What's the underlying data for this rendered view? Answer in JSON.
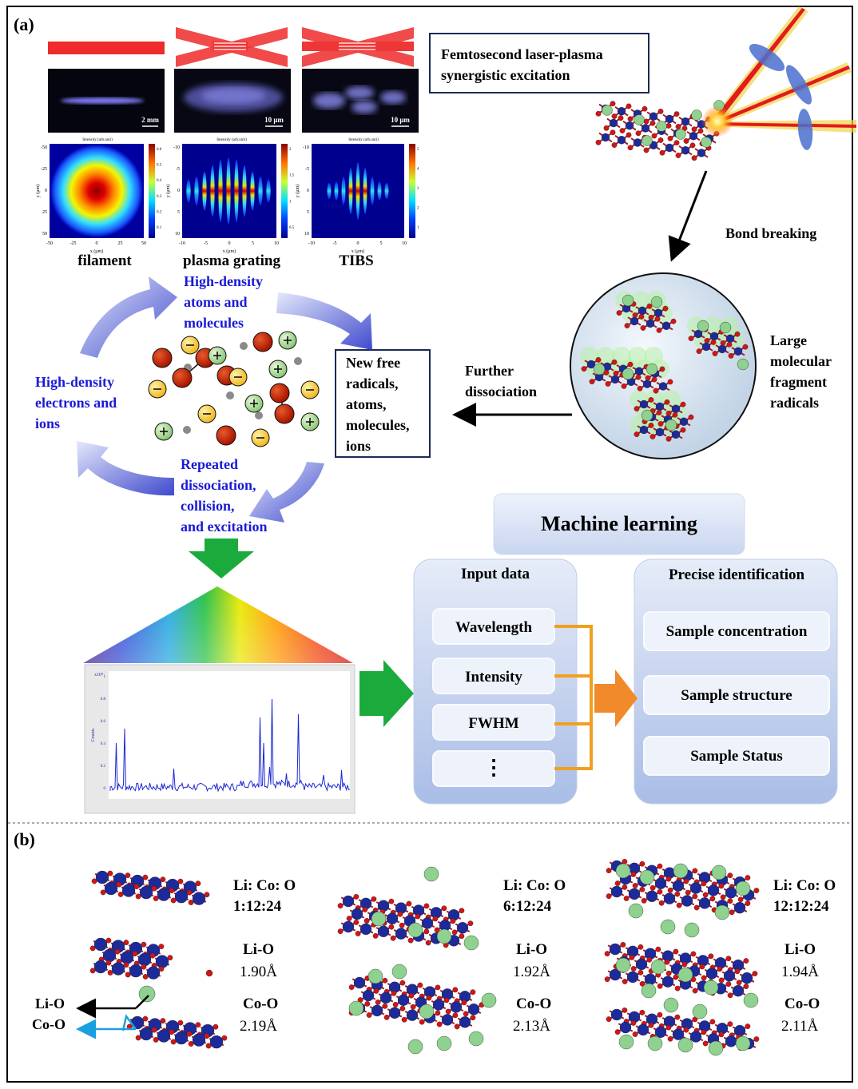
{
  "panel_labels": {
    "a": "(a)",
    "b": "(b)"
  },
  "panel_a": {
    "laser_modes": [
      {
        "name": "filament",
        "scalebar": "2 mm",
        "colorbar_title": "Intensity (arb.unit)",
        "xlabel": "x (μm)",
        "ylabel": "y (μm)",
        "xticks": [
          "-50",
          "-25",
          "0",
          "25",
          "50"
        ],
        "yticks": [
          "-50",
          "-25",
          "0",
          "25",
          "50"
        ],
        "cbar_ticks": [
          "0.6",
          "0.5",
          "0.4",
          "0.3",
          "0.2",
          "0.1"
        ]
      },
      {
        "name": "plasma grating",
        "scalebar": "10 μm",
        "colorbar_title": "Intensity (arb.unit)",
        "xlabel": "x (μm)",
        "ylabel": "y (μm)",
        "xticks": [
          "-10",
          "-5",
          "0",
          "5",
          "10"
        ],
        "yticks": [
          "-10",
          "-5",
          "0",
          "5",
          "10"
        ],
        "cbar_ticks": [
          "2",
          "1.5",
          "1",
          "0.5"
        ]
      },
      {
        "name": "TIBS",
        "scalebar": "10 μm",
        "colorbar_title": "Intensity (arb.unit)",
        "xlabel": "x (μm)",
        "ylabel": "y (μm)",
        "xticks": [
          "-10",
          "-5",
          "0",
          "5",
          "10"
        ],
        "yticks": [
          "-10",
          "-5",
          "0",
          "5",
          "10"
        ],
        "cbar_ticks": [
          "5",
          "4",
          "3",
          "2",
          "1"
        ]
      }
    ],
    "excitation_box": [
      "Femtosecond laser-plasma",
      "synergistic excitation"
    ],
    "bond_breaking": "Bond breaking",
    "fragment_label": [
      "Large",
      "molecular",
      "fragment",
      "radicals"
    ],
    "further_dissociation": [
      "Further",
      "dissociation"
    ],
    "new_free_box": [
      "New free",
      "radicals,",
      "atoms,",
      "molecules,",
      "ions"
    ],
    "cycle_top": [
      "High-density",
      "atoms and",
      "molecules"
    ],
    "cycle_left": [
      "High-density",
      "electrons and",
      "ions"
    ],
    "cycle_bottom": [
      "Repeated",
      "dissociation,",
      "collision,",
      "and excitation"
    ],
    "spectrum": {
      "ylabel": "Counts",
      "yscale": "x10⁴",
      "yticks": [
        "1",
        "0.8",
        "0.6",
        "0.4",
        "0.2",
        "0"
      ]
    },
    "ml": {
      "title": "Machine learning",
      "input_title": "Input data",
      "inputs": [
        "Wavelength",
        "Intensity",
        "FWHM",
        "⋮"
      ],
      "output_title": "Precise identification",
      "outputs": [
        "Sample concentration",
        "Sample structure",
        "Sample Status"
      ]
    }
  },
  "panel_b": {
    "structures": [
      {
        "ratio_label": "Li: Co: O",
        "ratio": "1:12:24",
        "lio_label": "Li-O",
        "lio": "1.90Å",
        "coo_label": "Co-O",
        "coo": "2.19Å"
      },
      {
        "ratio_label": "Li: Co: O",
        "ratio": "6:12:24",
        "lio_label": "Li-O",
        "lio": "1.92Å",
        "coo_label": "Co-O",
        "coo": "2.13Å"
      },
      {
        "ratio_label": "Li: Co: O",
        "ratio": "12:12:24",
        "lio_label": "Li-O",
        "lio": "1.94Å",
        "coo_label": "Co-O",
        "coo": "2.11Å"
      }
    ],
    "bond_arrows": [
      "Li-O",
      "Co-O"
    ]
  },
  "colors": {
    "text_blue": "#1a1ad6",
    "li_green": "#8fd18f",
    "co_blue": "#1c2a9a",
    "o_red": "#d41414",
    "ml_arrow": "#f08a2a",
    "spectrum_arrow": "#1aab3c"
  }
}
